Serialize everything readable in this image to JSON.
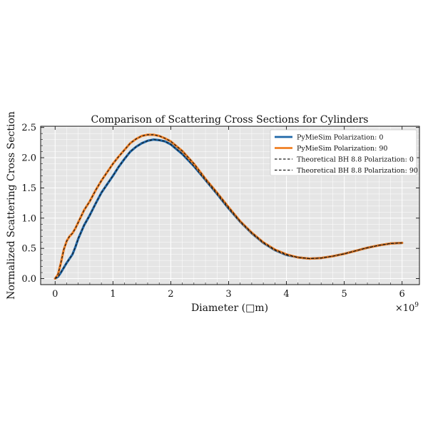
{
  "chart_data": {
    "type": "line",
    "title": "Comparison of Scattering Cross Sections for Cylinders",
    "xlabel": "Diameter (□m)",
    "ylabel": "Normalized Scattering Cross Section",
    "x_multiplier_label": "×10",
    "x_multiplier_exponent": "9",
    "xlim": [
      -0.25,
      6.3
    ],
    "ylim": [
      -0.1,
      2.52
    ],
    "x_ticks": [
      0,
      1,
      2,
      3,
      4,
      5,
      6
    ],
    "y_ticks": [
      0.0,
      0.5,
      1.0,
      1.5,
      2.0,
      2.5
    ],
    "x_tick_labels": [
      "0",
      "1",
      "2",
      "3",
      "4",
      "5",
      "6"
    ],
    "y_tick_labels": [
      "0.0",
      "0.5",
      "1.0",
      "1.5",
      "2.0",
      "2.5"
    ],
    "grid": true,
    "legend_position": "top-right",
    "background": "#e5e5e5",
    "colors": {
      "pol0": "#1f67a8",
      "pol90": "#f07f23",
      "theory": "#1a1a1a"
    },
    "series": [
      {
        "name": "PyMieSim Polarization: 0",
        "style": "solid",
        "color": "#1f67a8",
        "x": [
          0.0,
          0.05,
          0.1,
          0.15,
          0.2,
          0.25,
          0.3,
          0.35,
          0.4,
          0.5,
          0.6,
          0.7,
          0.8,
          0.9,
          1.0,
          1.1,
          1.2,
          1.3,
          1.4,
          1.5,
          1.6,
          1.7,
          1.8,
          1.9,
          2.0,
          2.2,
          2.4,
          2.6,
          2.8,
          3.0,
          3.2,
          3.4,
          3.6,
          3.8,
          4.0,
          4.2,
          4.4,
          4.6,
          4.8,
          5.0,
          5.2,
          5.4,
          5.6,
          5.8,
          6.0
        ],
        "y": [
          0.0,
          0.03,
          0.1,
          0.18,
          0.26,
          0.33,
          0.4,
          0.52,
          0.66,
          0.88,
          1.05,
          1.24,
          1.42,
          1.56,
          1.7,
          1.85,
          1.98,
          2.1,
          2.18,
          2.24,
          2.28,
          2.3,
          2.29,
          2.27,
          2.22,
          2.06,
          1.86,
          1.63,
          1.4,
          1.16,
          0.94,
          0.75,
          0.59,
          0.47,
          0.39,
          0.35,
          0.33,
          0.34,
          0.37,
          0.41,
          0.46,
          0.51,
          0.55,
          0.58,
          0.59
        ]
      },
      {
        "name": "PyMieSim Polarization: 90",
        "style": "solid",
        "color": "#f07f23",
        "x": [
          0.0,
          0.05,
          0.1,
          0.15,
          0.2,
          0.25,
          0.3,
          0.35,
          0.4,
          0.5,
          0.6,
          0.7,
          0.8,
          0.9,
          1.0,
          1.1,
          1.2,
          1.3,
          1.4,
          1.5,
          1.6,
          1.7,
          1.8,
          1.9,
          2.0,
          2.2,
          2.4,
          2.6,
          2.8,
          3.0,
          3.2,
          3.4,
          3.6,
          3.8,
          4.0,
          4.2,
          4.4,
          4.6,
          4.8,
          5.0,
          5.2,
          5.4,
          5.6,
          5.8,
          6.0
        ],
        "y": [
          0.0,
          0.07,
          0.26,
          0.48,
          0.62,
          0.7,
          0.75,
          0.83,
          0.93,
          1.13,
          1.28,
          1.46,
          1.62,
          1.76,
          1.9,
          2.02,
          2.13,
          2.24,
          2.31,
          2.36,
          2.38,
          2.38,
          2.36,
          2.32,
          2.27,
          2.11,
          1.9,
          1.65,
          1.42,
          1.18,
          0.95,
          0.76,
          0.6,
          0.48,
          0.4,
          0.35,
          0.33,
          0.34,
          0.37,
          0.41,
          0.46,
          0.51,
          0.55,
          0.58,
          0.59
        ]
      },
      {
        "name": "Theoretical BH 8.8 Polarization: 0",
        "style": "dashed",
        "color": "#1a1a1a",
        "x": [
          0.0,
          0.05,
          0.1,
          0.15,
          0.2,
          0.25,
          0.3,
          0.35,
          0.4,
          0.5,
          0.6,
          0.7,
          0.8,
          0.9,
          1.0,
          1.1,
          1.2,
          1.3,
          1.4,
          1.5,
          1.6,
          1.7,
          1.8,
          1.9,
          2.0,
          2.2,
          2.4,
          2.6,
          2.8,
          3.0,
          3.2,
          3.4,
          3.6,
          3.8,
          4.0,
          4.2,
          4.4,
          4.6,
          4.8,
          5.0,
          5.2,
          5.4,
          5.6,
          5.8,
          6.0
        ],
        "y": [
          0.0,
          0.03,
          0.1,
          0.18,
          0.26,
          0.33,
          0.4,
          0.52,
          0.66,
          0.88,
          1.05,
          1.24,
          1.42,
          1.56,
          1.7,
          1.85,
          1.98,
          2.1,
          2.18,
          2.24,
          2.28,
          2.3,
          2.29,
          2.27,
          2.22,
          2.06,
          1.86,
          1.63,
          1.4,
          1.16,
          0.94,
          0.75,
          0.59,
          0.47,
          0.39,
          0.35,
          0.33,
          0.34,
          0.37,
          0.41,
          0.46,
          0.51,
          0.55,
          0.58,
          0.59
        ]
      },
      {
        "name": "Theoretical BH 8.8 Polarization: 90",
        "style": "dashed",
        "color": "#1a1a1a",
        "x": [
          0.0,
          0.05,
          0.1,
          0.15,
          0.2,
          0.25,
          0.3,
          0.35,
          0.4,
          0.5,
          0.6,
          0.7,
          0.8,
          0.9,
          1.0,
          1.1,
          1.2,
          1.3,
          1.4,
          1.5,
          1.6,
          1.7,
          1.8,
          1.9,
          2.0,
          2.2,
          2.4,
          2.6,
          2.8,
          3.0,
          3.2,
          3.4,
          3.6,
          3.8,
          4.0,
          4.2,
          4.4,
          4.6,
          4.8,
          5.0,
          5.2,
          5.4,
          5.6,
          5.8,
          6.0
        ],
        "y": [
          0.0,
          0.07,
          0.26,
          0.48,
          0.62,
          0.7,
          0.75,
          0.83,
          0.93,
          1.13,
          1.28,
          1.46,
          1.62,
          1.76,
          1.9,
          2.02,
          2.13,
          2.24,
          2.31,
          2.36,
          2.38,
          2.38,
          2.36,
          2.32,
          2.27,
          2.11,
          1.9,
          1.65,
          1.42,
          1.18,
          0.95,
          0.76,
          0.6,
          0.48,
          0.4,
          0.35,
          0.33,
          0.34,
          0.37,
          0.41,
          0.46,
          0.51,
          0.55,
          0.58,
          0.59
        ]
      }
    ]
  }
}
